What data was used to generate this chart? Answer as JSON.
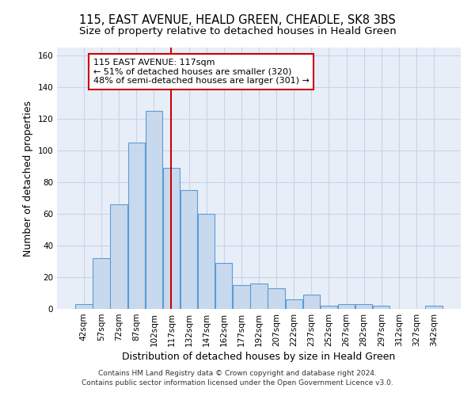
{
  "title": "115, EAST AVENUE, HEALD GREEN, CHEADLE, SK8 3BS",
  "subtitle": "Size of property relative to detached houses in Heald Green",
  "xlabel": "Distribution of detached houses by size in Heald Green",
  "ylabel": "Number of detached properties",
  "footnote1": "Contains HM Land Registry data © Crown copyright and database right 2024.",
  "footnote2": "Contains public sector information licensed under the Open Government Licence v3.0.",
  "annotation_line1": "115 EAST AVENUE: 117sqm",
  "annotation_line2": "← 51% of detached houses are smaller (320)",
  "annotation_line3": "48% of semi-detached houses are larger (301) →",
  "bar_color": "#c8d9ee",
  "bar_edge_color": "#5b9bd5",
  "red_line_x": 117,
  "red_line_color": "#cc0000",
  "categories": [
    42,
    57,
    72,
    87,
    102,
    117,
    132,
    147,
    162,
    177,
    192,
    207,
    222,
    237,
    252,
    267,
    282,
    297,
    312,
    327,
    342
  ],
  "values": [
    3,
    32,
    66,
    105,
    125,
    89,
    75,
    60,
    29,
    15,
    16,
    13,
    6,
    9,
    2,
    3,
    3,
    2,
    0,
    0,
    2
  ],
  "bar_width": 14.5,
  "ylim": [
    0,
    165
  ],
  "yticks": [
    0,
    20,
    40,
    60,
    80,
    100,
    120,
    140,
    160
  ],
  "grid_color": "#c8d4e8",
  "bg_color": "#e8eef8",
  "title_fontsize": 10.5,
  "subtitle_fontsize": 9.5,
  "xlabel_fontsize": 9,
  "ylabel_fontsize": 9,
  "tick_fontsize": 7.5,
  "annotation_fontsize": 8,
  "footnote_fontsize": 6.5
}
